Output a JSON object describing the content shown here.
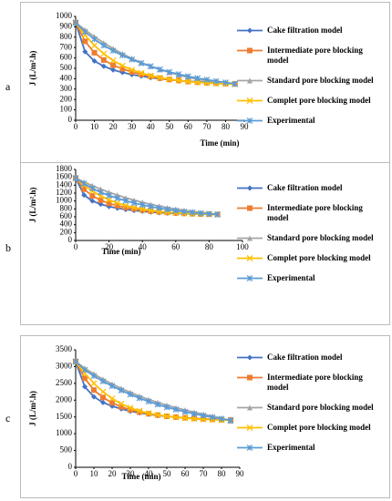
{
  "chart_data": [
    {
      "type": "line",
      "panel_label": "a",
      "x_label": "Time (min)",
      "y_label": "J (L/m².h)",
      "x": [
        0,
        5,
        10,
        15,
        20,
        25,
        30,
        35,
        40,
        45,
        50,
        55,
        60,
        65,
        70,
        75,
        80,
        85
      ],
      "xlim": [
        0,
        90
      ],
      "xticks": [
        0,
        10,
        20,
        30,
        40,
        50,
        60,
        70,
        80,
        90
      ],
      "ylim": [
        0,
        1000
      ],
      "yticks": [
        0,
        100,
        200,
        300,
        400,
        500,
        600,
        700,
        800,
        900,
        1000
      ],
      "series": [
        {
          "name": "Cake filtration model",
          "color": "#4472c4",
          "marker": "diamond",
          "values": [
            940,
            660,
            570,
            520,
            485,
            460,
            440,
            425,
            410,
            400,
            390,
            382,
            375,
            370,
            365,
            360,
            357,
            353
          ]
        },
        {
          "name": "Intermediate pore blocking model",
          "color": "#ed7d31",
          "marker": "square",
          "values": [
            940,
            760,
            650,
            580,
            530,
            495,
            465,
            442,
            422,
            405,
            392,
            382,
            373,
            366,
            360,
            356,
            352,
            349
          ]
        },
        {
          "name": "Standard pore blocking model",
          "color": "#a5a5a5",
          "marker": "triangle",
          "values": [
            940,
            870,
            805,
            745,
            690,
            640,
            595,
            555,
            520,
            488,
            460,
            435,
            413,
            395,
            380,
            368,
            358,
            350
          ]
        },
        {
          "name": "Complet pore blocking model",
          "color": "#ffc000",
          "marker": "cross",
          "values": [
            940,
            820,
            720,
            640,
            575,
            525,
            485,
            455,
            430,
            410,
            395,
            383,
            373,
            365,
            359,
            354,
            350,
            347
          ]
        },
        {
          "name": "Experimental",
          "color": "#5b9bd5",
          "marker": "star",
          "values": [
            940,
            850,
            780,
            720,
            670,
            625,
            585,
            550,
            520,
            490,
            465,
            443,
            423,
            405,
            390,
            376,
            364,
            350
          ]
        }
      ]
    },
    {
      "type": "line",
      "panel_label": "b",
      "x_label": "Time (min)",
      "y_label": "J (L/m².h)",
      "x": [
        0,
        5,
        10,
        15,
        20,
        25,
        30,
        35,
        40,
        45,
        50,
        55,
        60,
        65,
        70,
        75,
        80,
        85
      ],
      "xlim": [
        0,
        100
      ],
      "xticks": [
        0,
        20,
        40,
        60,
        80,
        100
      ],
      "ylim": [
        0,
        1800
      ],
      "yticks": [
        0,
        200,
        400,
        600,
        800,
        1000,
        1200,
        1400,
        1600,
        1800
      ],
      "series": [
        {
          "name": "Cake filtration model",
          "color": "#4472c4",
          "marker": "diamond",
          "values": [
            1580,
            1150,
            1000,
            920,
            860,
            820,
            785,
            760,
            740,
            720,
            705,
            695,
            685,
            678,
            672,
            667,
            663,
            660
          ]
        },
        {
          "name": "Intermediate pore blocking model",
          "color": "#ed7d31",
          "marker": "square",
          "values": [
            1580,
            1300,
            1130,
            1020,
            940,
            880,
            835,
            800,
            770,
            745,
            725,
            710,
            697,
            687,
            678,
            671,
            665,
            660
          ]
        },
        {
          "name": "Standard pore blocking model",
          "color": "#a5a5a5",
          "marker": "triangle",
          "values": [
            1580,
            1480,
            1390,
            1300,
            1220,
            1150,
            1080,
            1020,
            965,
            915,
            870,
            830,
            795,
            765,
            735,
            710,
            685,
            660
          ]
        },
        {
          "name": "Complet pore blocking model",
          "color": "#ffc000",
          "marker": "cross",
          "values": [
            1580,
            1400,
            1250,
            1130,
            1030,
            950,
            885,
            835,
            795,
            760,
            735,
            715,
            700,
            688,
            678,
            670,
            664,
            658
          ]
        },
        {
          "name": "Experimental",
          "color": "#5b9bd5",
          "marker": "star",
          "values": [
            1580,
            1440,
            1320,
            1220,
            1140,
            1070,
            1005,
            950,
            900,
            860,
            820,
            785,
            755,
            730,
            710,
            690,
            675,
            660
          ]
        }
      ]
    },
    {
      "type": "line",
      "panel_label": "c",
      "x_label": "Time (min)",
      "y_label": "J (L/m².h)",
      "x": [
        0,
        5,
        10,
        15,
        20,
        25,
        30,
        35,
        40,
        45,
        50,
        55,
        60,
        65,
        70,
        75,
        80,
        85
      ],
      "xlim": [
        0,
        90
      ],
      "xticks": [
        0,
        10,
        20,
        30,
        40,
        50,
        60,
        70,
        80,
        90
      ],
      "ylim": [
        0,
        3500
      ],
      "yticks": [
        0,
        500,
        1000,
        1500,
        2000,
        2500,
        3000,
        3500
      ],
      "series": [
        {
          "name": "Cake filtration model",
          "color": "#4472c4",
          "marker": "diamond",
          "values": [
            3150,
            2400,
            2100,
            1930,
            1820,
            1740,
            1670,
            1620,
            1580,
            1545,
            1515,
            1490,
            1470,
            1455,
            1440,
            1425,
            1415,
            1405
          ]
        },
        {
          "name": "Intermediate pore blocking model",
          "color": "#ed7d31",
          "marker": "square",
          "values": [
            3150,
            2650,
            2300,
            2080,
            1920,
            1800,
            1710,
            1645,
            1595,
            1555,
            1520,
            1495,
            1475,
            1458,
            1443,
            1430,
            1418,
            1408
          ]
        },
        {
          "name": "Standard pore blocking model",
          "color": "#a5a5a5",
          "marker": "triangle",
          "values": [
            3150,
            2950,
            2780,
            2620,
            2480,
            2350,
            2230,
            2120,
            2020,
            1930,
            1850,
            1775,
            1705,
            1640,
            1580,
            1520,
            1465,
            1380
          ]
        },
        {
          "name": "Complet pore blocking model",
          "color": "#ffc000",
          "marker": "cross",
          "values": [
            3150,
            2800,
            2500,
            2250,
            2050,
            1890,
            1770,
            1680,
            1610,
            1560,
            1520,
            1490,
            1465,
            1445,
            1430,
            1418,
            1408,
            1400
          ]
        },
        {
          "name": "Experimental",
          "color": "#5b9bd5",
          "marker": "star",
          "values": [
            3150,
            2900,
            2720,
            2560,
            2420,
            2290,
            2170,
            2060,
            1960,
            1870,
            1790,
            1720,
            1650,
            1590,
            1540,
            1490,
            1445,
            1400
          ]
        }
      ]
    }
  ]
}
